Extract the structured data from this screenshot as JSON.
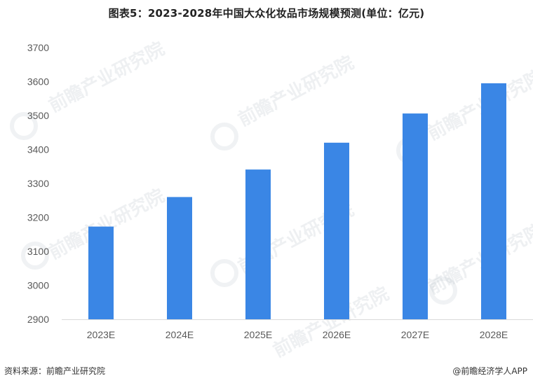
{
  "title": "图表5：2023-2028年中国大众化妆品市场规模预测(单位：亿元)",
  "footer": {
    "source": "资料来源：前瞻产业研究院",
    "app": "@前瞻经济学人APP"
  },
  "watermark": {
    "text": "前瞻产业研究院"
  },
  "colors": {
    "bar": "#3a86e5",
    "axis": "#d9d9d9",
    "text": "#595959"
  },
  "chart_data": {
    "type": "bar",
    "title": "图表5：2023-2028年中国大众化妆品市场规模预测(单位：亿元)",
    "categories": [
      "2023E",
      "2024E",
      "2025E",
      "2026E",
      "2027E",
      "2028E"
    ],
    "values": [
      3173,
      3260,
      3341,
      3420,
      3506,
      3595
    ],
    "ylim": [
      2900,
      3700
    ],
    "yticks": [
      2900,
      3000,
      3100,
      3200,
      3300,
      3400,
      3500,
      3600,
      3700
    ],
    "xlabel": "",
    "ylabel": "",
    "grid": false,
    "legend": "none"
  }
}
